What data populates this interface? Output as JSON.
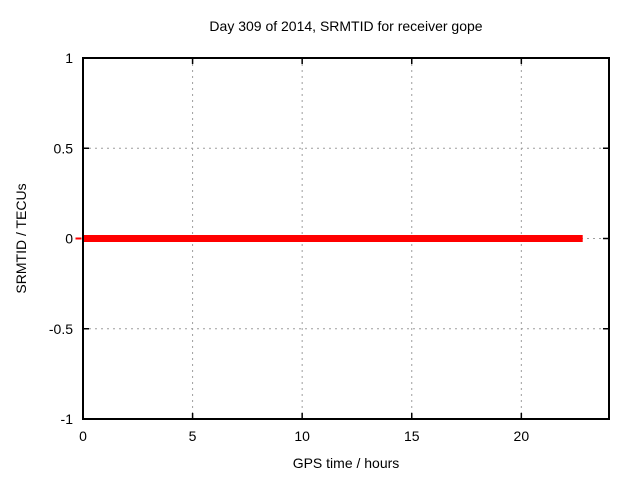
{
  "chart_data": {
    "type": "line",
    "title": "Day 309 of 2014, SRMTID for receiver gope",
    "xlabel": "GPS time / hours",
    "ylabel": "SRMTID / TECUs",
    "xlim": [
      0,
      24
    ],
    "ylim": [
      -1,
      1
    ],
    "xticks": [
      0,
      5,
      10,
      15,
      20
    ],
    "xtick_labels": [
      "0",
      "5",
      "10",
      "15",
      "20"
    ],
    "yticks": [
      1,
      0.5,
      0,
      -0.5,
      -1
    ],
    "ytick_labels": [
      "1",
      "0.5",
      "0",
      "-0.5",
      "-1"
    ],
    "grid": true,
    "legend_position": "none",
    "colors": {
      "series": "#ff0000",
      "grid": "#9e9e9e",
      "axis": "#000000",
      "text": "#000000",
      "background": "#ffffff"
    },
    "series": [
      {
        "name": "SRMTID",
        "x": [
          0,
          22.8
        ],
        "y": [
          0,
          0
        ]
      }
    ]
  }
}
